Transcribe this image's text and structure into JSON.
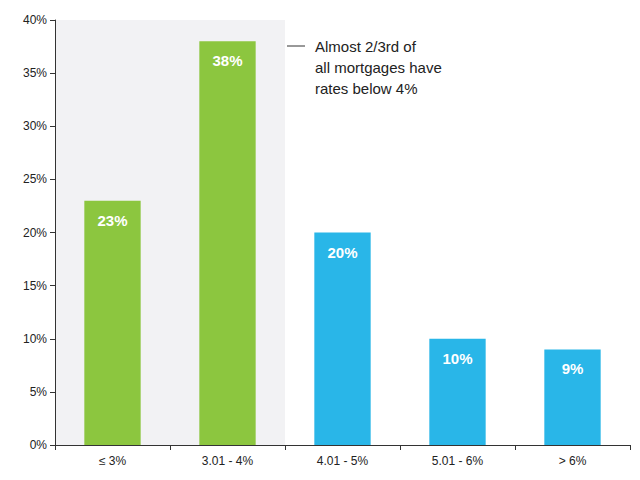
{
  "chart_data": {
    "type": "bar",
    "categories": [
      "≤ 3%",
      "3.01 - 4%",
      "4.01 - 5%",
      "5.01 - 6%",
      "> 6%"
    ],
    "values": [
      23,
      38,
      20,
      10,
      9
    ],
    "value_labels": [
      "23%",
      "38%",
      "20%",
      "10%",
      "9%"
    ],
    "colors": [
      "#8cc63f",
      "#8cc63f",
      "#29b6e8",
      "#29b6e8",
      "#29b6e8"
    ],
    "ylim": [
      0,
      40
    ],
    "yticks": [
      {
        "value": 0,
        "label": "0%"
      },
      {
        "value": 5,
        "label": "5%"
      },
      {
        "value": 10,
        "label": "10%"
      },
      {
        "value": 15,
        "label": "15%"
      },
      {
        "value": 20,
        "label": "20%"
      },
      {
        "value": 25,
        "label": "25%"
      },
      {
        "value": 30,
        "label": "30%"
      },
      {
        "value": 35,
        "label": "35%"
      },
      {
        "value": 40,
        "label": "40%"
      }
    ],
    "annotation": "Almost 2/3rd of\nall mortgages have\nrates below 4%",
    "data_labels": true,
    "grid": false
  }
}
